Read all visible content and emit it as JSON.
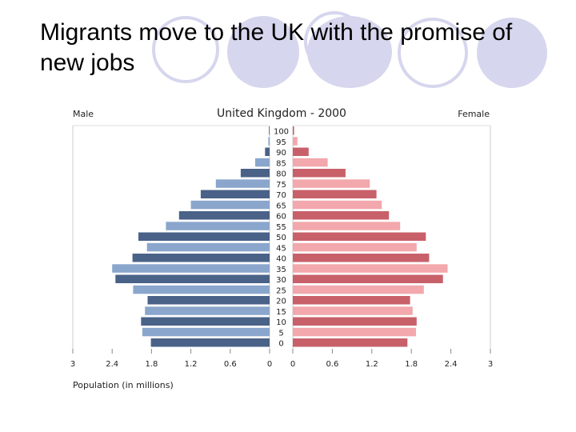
{
  "slide": {
    "title": "Migrants move to the UK with the promise of new jobs"
  },
  "colors": {
    "deco": "#d6d6ee",
    "male_dark": "#4a6288",
    "male_light": "#8aa6cc",
    "female_dark": "#c8606a",
    "female_light": "#f2a8ac"
  },
  "chart_data": {
    "type": "bar",
    "orientation": "horizontal-population-pyramid",
    "title": "United Kingdom - 2000",
    "left_label": "Male",
    "right_label": "Female",
    "xlabel": "Population (in millions)",
    "xlim": [
      0,
      3
    ],
    "xticks_male": [
      "3",
      "2.4",
      "1.8",
      "1.2",
      "0.6",
      "0"
    ],
    "xticks_female": [
      "0",
      "0.6",
      "1.2",
      "1.8",
      "2.4",
      "3"
    ],
    "categories": [
      "100",
      "95",
      "90",
      "85",
      "80",
      "75",
      "70",
      "65",
      "60",
      "55",
      "50",
      "45",
      "40",
      "35",
      "30",
      "25",
      "20",
      "15",
      "10",
      "5",
      "0"
    ],
    "series": [
      {
        "name": "Male",
        "values": [
          0.01,
          0.02,
          0.07,
          0.22,
          0.44,
          0.82,
          1.05,
          1.2,
          1.38,
          1.58,
          2.0,
          1.87,
          2.09,
          2.4,
          2.35,
          2.08,
          1.86,
          1.9,
          1.96,
          1.94,
          1.81
        ]
      },
      {
        "name": "Female",
        "values": [
          0.02,
          0.07,
          0.24,
          0.53,
          0.8,
          1.17,
          1.27,
          1.35,
          1.46,
          1.63,
          2.02,
          1.88,
          2.07,
          2.35,
          2.28,
          1.99,
          1.78,
          1.82,
          1.88,
          1.87,
          1.74
        ]
      }
    ]
  }
}
